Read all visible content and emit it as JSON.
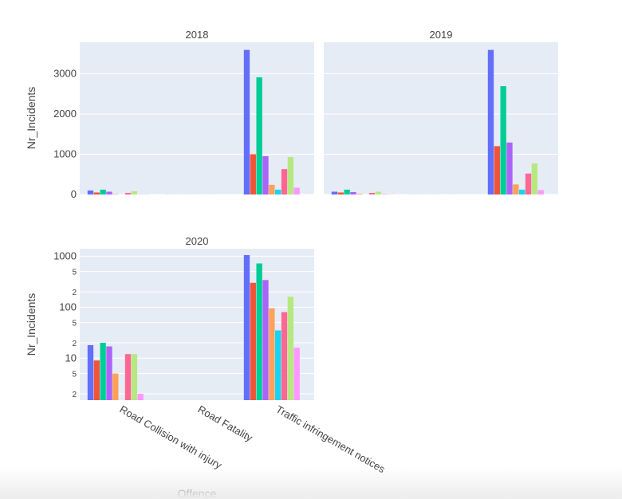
{
  "chart_data": {
    "type": "bar",
    "categories": [
      "Road Collision with injury",
      "Road Fatality",
      "Traffic infringement notices"
    ],
    "xlabel": "Offence",
    "ylabel": "Nr_Incidents",
    "bar_colors": [
      "#636efa",
      "#ef553b",
      "#00cc96",
      "#ab63fa",
      "#ffa15a",
      "#19d3f3",
      "#ff6692",
      "#b6e880",
      "#ff97ff",
      "#fecb52"
    ],
    "panels": [
      {
        "title": "2018",
        "scale": "linear",
        "yticks": [
          0,
          1000,
          2000,
          3000
        ],
        "ylim": [
          0,
          3780
        ],
        "show_yticks": true,
        "groups": [
          [
            100,
            50,
            120,
            70,
            10,
            0,
            40,
            80,
            5,
            5
          ],
          [
            2,
            1,
            1,
            1,
            1,
            0,
            1,
            1,
            0,
            0
          ],
          [
            3590,
            1000,
            2910,
            950,
            240,
            120,
            630,
            930,
            170,
            0
          ]
        ]
      },
      {
        "title": "2019",
        "scale": "linear",
        "yticks": [
          0,
          1000,
          2000,
          3000
        ],
        "ylim": [
          0,
          3780
        ],
        "show_yticks": false,
        "groups": [
          [
            70,
            50,
            120,
            60,
            15,
            0,
            40,
            70,
            10,
            5
          ],
          [
            2,
            1,
            1,
            1,
            1,
            0,
            1,
            1,
            0,
            0
          ],
          [
            3590,
            1200,
            2690,
            1290,
            250,
            120,
            520,
            770,
            110,
            0
          ]
        ]
      },
      {
        "title": "2020",
        "scale": "log",
        "ytick_labels": [
          {
            "v": 2,
            "t": "2"
          },
          {
            "v": 5,
            "t": "5"
          },
          {
            "v": 10,
            "t": "10"
          },
          {
            "v": 20,
            "t": "2"
          },
          {
            "v": 50,
            "t": "5"
          },
          {
            "v": 100,
            "t": "100"
          },
          {
            "v": 200,
            "t": "2"
          },
          {
            "v": 500,
            "t": "5"
          },
          {
            "v": 1000,
            "t": "1000"
          }
        ],
        "ylim": [
          1.5,
          1400
        ],
        "show_yticks": true,
        "groups": [
          [
            18,
            9,
            20,
            17,
            5,
            0,
            12,
            12,
            2,
            0
          ],
          [
            0,
            0,
            0,
            0,
            0,
            0,
            0,
            0,
            0,
            0
          ],
          [
            1050,
            300,
            720,
            340,
            95,
            35,
            80,
            160,
            16,
            0
          ]
        ]
      }
    ]
  }
}
